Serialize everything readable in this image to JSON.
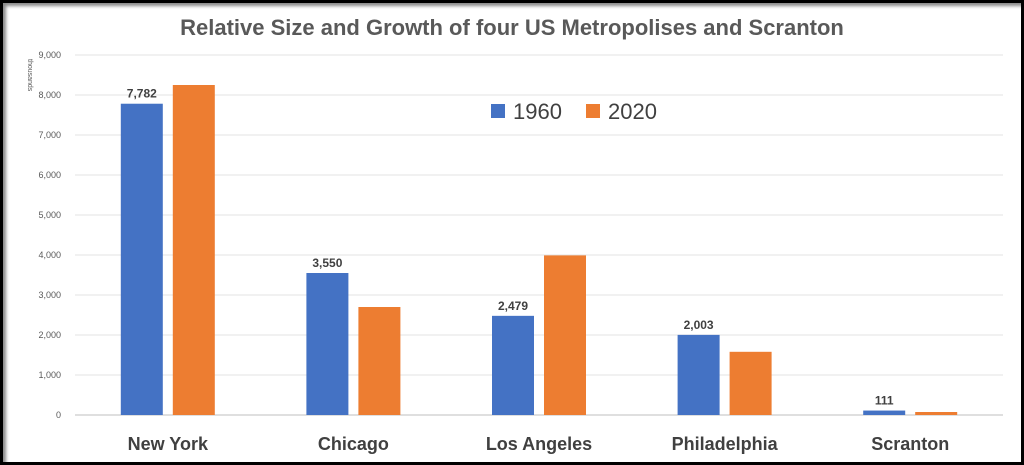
{
  "chart_data": {
    "type": "bar",
    "title": "Relative Size and Growth of four US Metropolises and Scranton",
    "ylabel": "thousands",
    "xlabel": "",
    "categories": [
      "New York",
      "Chicago",
      "Los Angeles",
      "Philadelphia",
      "Scranton"
    ],
    "series": [
      {
        "name": "1960",
        "values": [
          7782,
          3550,
          2479,
          2003,
          111
        ],
        "color": "#4472C4",
        "data_labels": [
          "7,782",
          "3,550",
          "2,479",
          "2,003",
          "111"
        ]
      },
      {
        "name": "2020",
        "values": [
          8250,
          2700,
          3990,
          1580,
          75
        ],
        "color": "#ED7D31"
      }
    ],
    "ylim": [
      0,
      9000
    ],
    "yticks": [
      0,
      1000,
      2000,
      3000,
      4000,
      5000,
      6000,
      7000,
      8000,
      9000
    ],
    "ytick_labels": [
      "0",
      "1,000",
      "2,000",
      "3,000",
      "4,000",
      "5,000",
      "6,000",
      "7,000",
      "8,000",
      "9,000"
    ],
    "grid": true,
    "legend_position": "top-center"
  }
}
